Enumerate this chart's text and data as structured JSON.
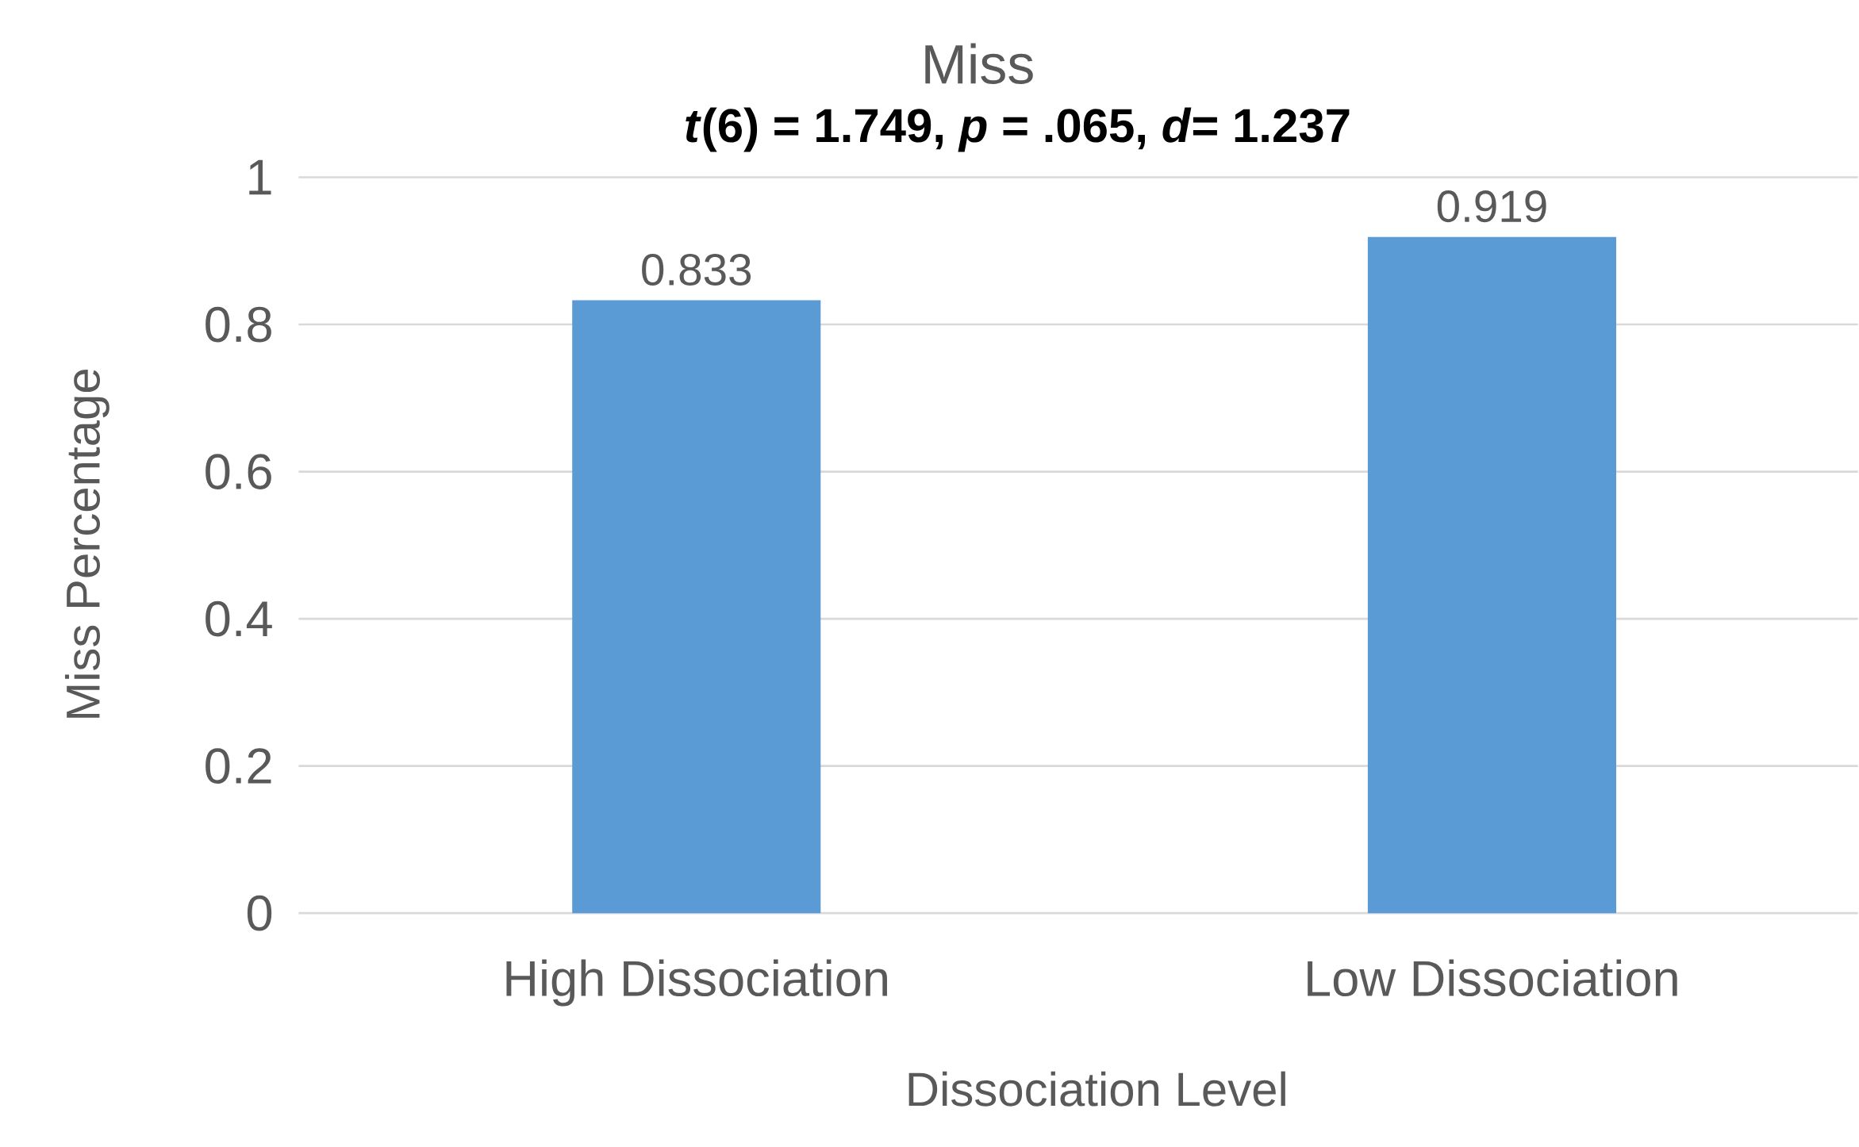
{
  "chart_data": {
    "type": "bar",
    "title": "Miss",
    "subtitle": "*t*(6) = 1.749, *p* = .065, *d*= 1.237",
    "xlabel": "Dissociation Level",
    "ylabel": "Miss Percentage",
    "categories": [
      "High Dissociation",
      "Low Dissociation"
    ],
    "values": [
      0.833,
      0.919
    ],
    "color": "#5b9bd5",
    "ylim": [
      0,
      1
    ],
    "yticks": [
      0,
      0.2,
      0.4,
      0.6,
      0.8,
      1
    ],
    "grid": "y",
    "data_labels": true
  }
}
